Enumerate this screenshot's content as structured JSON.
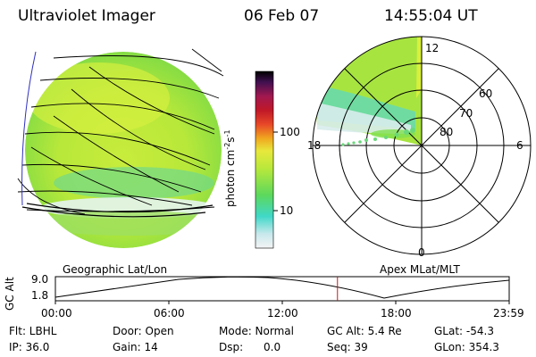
{
  "header": {
    "instrument": "Ultraviolet Imager",
    "date": "06 Feb 07",
    "time": "14:55:04 UT"
  },
  "colorbar": {
    "unit_label": "photon cm",
    "unit_exp1": "-2",
    "unit_s": "s",
    "unit_exp2": "-1",
    "tick_high": "100",
    "tick_low": "10"
  },
  "polar_plot": {
    "mlt_top": "12",
    "mlt_left": "18",
    "mlt_right": "6",
    "mlt_bottom": "0",
    "lat_60": "60",
    "lat_70": "70",
    "lat_80": "80"
  },
  "panel_labels": {
    "left": "Geographic Lat/Lon",
    "right": "Apex MLat/MLT"
  },
  "altitude_plot": {
    "ylabel": "GC Alt",
    "ytick_high": "9.0",
    "ytick_low": "1.8",
    "xticks": [
      "00:00",
      "06:00",
      "12:00",
      "18:00",
      "23:59"
    ],
    "current_time_fraction": 0.6216
  },
  "footer": {
    "filter": "Flt: LBHL",
    "door": "Door: Open",
    "mode": "Mode: Normal",
    "gc_alt": "GC Alt: 5.4 Re",
    "glat": "GLat: -54.3",
    "ip": "IP: 36.0",
    "gain": "Gain: 14",
    "dsp": "Dsp:      0.0",
    "seq": "Seq: 39",
    "glon": "GLon: 354.3"
  },
  "colors": {
    "aurora_green": "#7ee03a",
    "aurora_yellow": "#d8f03c",
    "aurora_cyan": "#40d8c8",
    "pale": "#d8ecec",
    "marker": "#c01818"
  }
}
